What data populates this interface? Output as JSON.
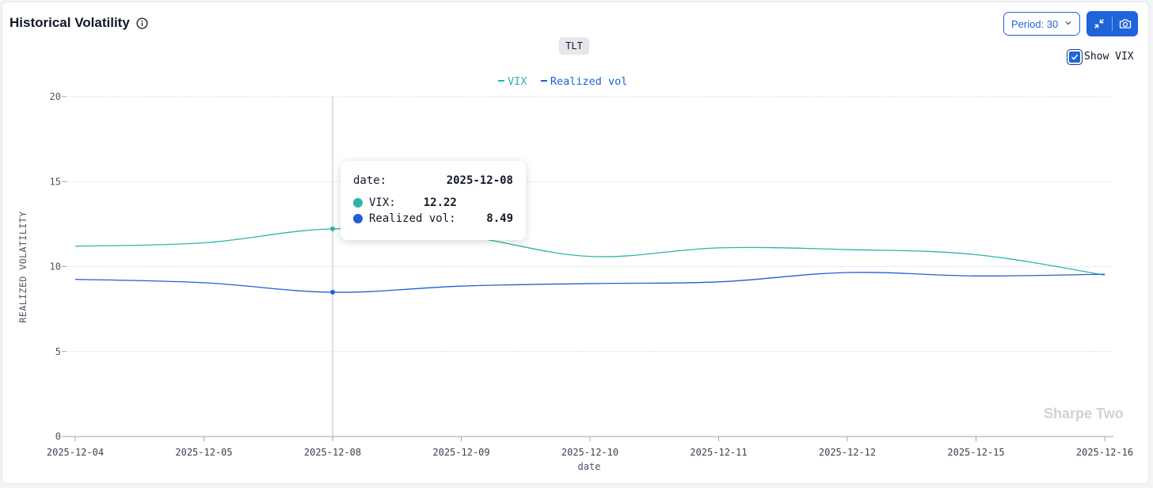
{
  "header": {
    "title": "Historical Volatility",
    "period_label": "Period: 30",
    "ticker": "TLT",
    "show_vix_label": "Show VIX",
    "show_vix_checked": true
  },
  "watermark": "Sharpe Two",
  "tooltip": {
    "date_label": "date:",
    "date_value": "2025-12-08",
    "rows": [
      {
        "label": "VIX:",
        "value": "12.22",
        "color": "#2bb5a8"
      },
      {
        "label": "Realized vol:",
        "value": "8.49",
        "color": "#1f5fd6"
      }
    ]
  },
  "chart_data": {
    "type": "line",
    "x": [
      "2025-12-04",
      "2025-12-05",
      "2025-12-08",
      "2025-12-09",
      "2025-12-10",
      "2025-12-11",
      "2025-12-12",
      "2025-12-15",
      "2025-12-16"
    ],
    "series": [
      {
        "name": "VIX",
        "color": "#2bb5a8",
        "values": [
          11.2,
          11.4,
          12.22,
          11.8,
          10.6,
          11.1,
          11.0,
          10.7,
          9.5
        ]
      },
      {
        "name": "Realized vol",
        "color": "#1f5fd6",
        "values": [
          9.25,
          9.05,
          8.49,
          8.85,
          9.0,
          9.1,
          9.65,
          9.45,
          9.55
        ]
      }
    ],
    "xlabel": "date",
    "ylabel": "REALIZED VOLATILITY",
    "ylim": [
      0,
      20
    ],
    "yticks": [
      0,
      5,
      10,
      15,
      20
    ],
    "grid": true,
    "legend": "top-center",
    "hover_x": "2025-12-08"
  }
}
